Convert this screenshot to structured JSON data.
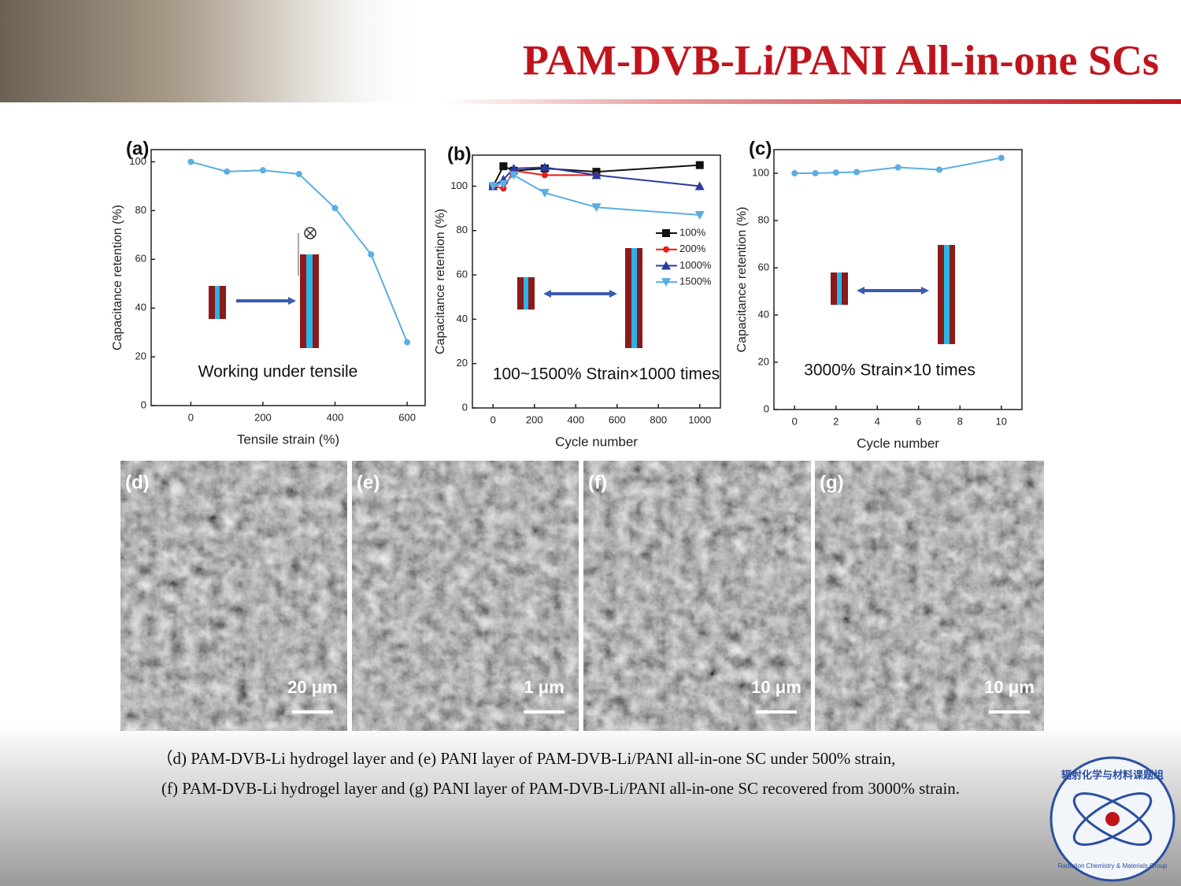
{
  "title": "PAM-DVB-Li/PANI All-in-one SCs",
  "chart_data": [
    {
      "type": "line",
      "panel": "(a)",
      "x_label": "Tensile strain (%)",
      "y_label": "Capacitance retention (%)",
      "annotation": "Working under tensile",
      "x": [
        0,
        100,
        200,
        300,
        400,
        500,
        600
      ],
      "values": [
        100,
        96,
        96.5,
        95,
        81,
        62,
        26
      ],
      "color": "#5aaee0",
      "marker": "circle",
      "xlim": [
        -110,
        650
      ],
      "ylim": [
        0,
        105
      ],
      "xticks": [
        0,
        200,
        400,
        600
      ],
      "yticks": [
        0,
        20,
        40,
        60,
        80,
        100
      ]
    },
    {
      "type": "line",
      "panel": "(b)",
      "x_label": "Cycle number",
      "y_label": "Capacitance retention (%)",
      "annotation": "100~1500% Strain×1000 times",
      "legend": "right",
      "x": [
        0,
        50,
        100,
        250,
        500,
        1000
      ],
      "series": [
        {
          "name": "100%",
          "color": "#111111",
          "marker": "square",
          "values": [
            100,
            109,
            107,
            108,
            106.5,
            109.5
          ]
        },
        {
          "name": "200%",
          "color": "#e0201b",
          "marker": "circle",
          "values": [
            100,
            99,
            107,
            105,
            105,
            null
          ]
        },
        {
          "name": "1000%",
          "color": "#2a3aa0",
          "marker": "triangle-up",
          "values": [
            100,
            103,
            108,
            108.5,
            105,
            100
          ]
        },
        {
          "name": "1500%",
          "color": "#5aaee0",
          "marker": "triangle-down",
          "values": [
            100,
            101,
            105,
            97,
            90.5,
            87
          ]
        }
      ],
      "xlim": [
        -100,
        1100
      ],
      "ylim": [
        0,
        114
      ],
      "xticks": [
        0,
        200,
        400,
        600,
        800,
        1000
      ],
      "yticks": [
        0,
        20,
        40,
        60,
        80,
        100
      ]
    },
    {
      "type": "line",
      "panel": "(c)",
      "x_label": "Cycle number",
      "y_label": "Capacitance retention (%)",
      "annotation": "3000% Strain×10 times",
      "x": [
        0,
        1,
        2,
        3,
        5,
        7,
        10
      ],
      "values": [
        100,
        100,
        100.3,
        100.5,
        102.5,
        101.5,
        106.5
      ],
      "color": "#5aaee0",
      "marker": "circle",
      "xlim": [
        -1,
        11
      ],
      "ylim": [
        0,
        110
      ],
      "xticks": [
        0,
        2,
        4,
        6,
        8,
        10
      ],
      "yticks": [
        0,
        20,
        40,
        60,
        80,
        100
      ]
    }
  ],
  "images": [
    {
      "label": "(d)",
      "scale": "20 μm"
    },
    {
      "label": "(e)",
      "scale": "1 μm"
    },
    {
      "label": "(f)",
      "scale": "10 μm"
    },
    {
      "label": "(g)",
      "scale": "10 μm"
    }
  ],
  "caption": [
    "（d) PAM-DVB-Li hydrogel layer and (e) PANI layer of PAM-DVB-Li/PANI all-in-one SC under 500% strain,",
    "(f) PAM-DVB-Li hydrogel layer and (g) PANI layer of PAM-DVB-Li/PANI all-in-one SC recovered from 3000% strain."
  ],
  "logo": {
    "name_cn": "辐射化学与材料课题组",
    "name_en": "Radiation Chemistry & Materials Group"
  }
}
